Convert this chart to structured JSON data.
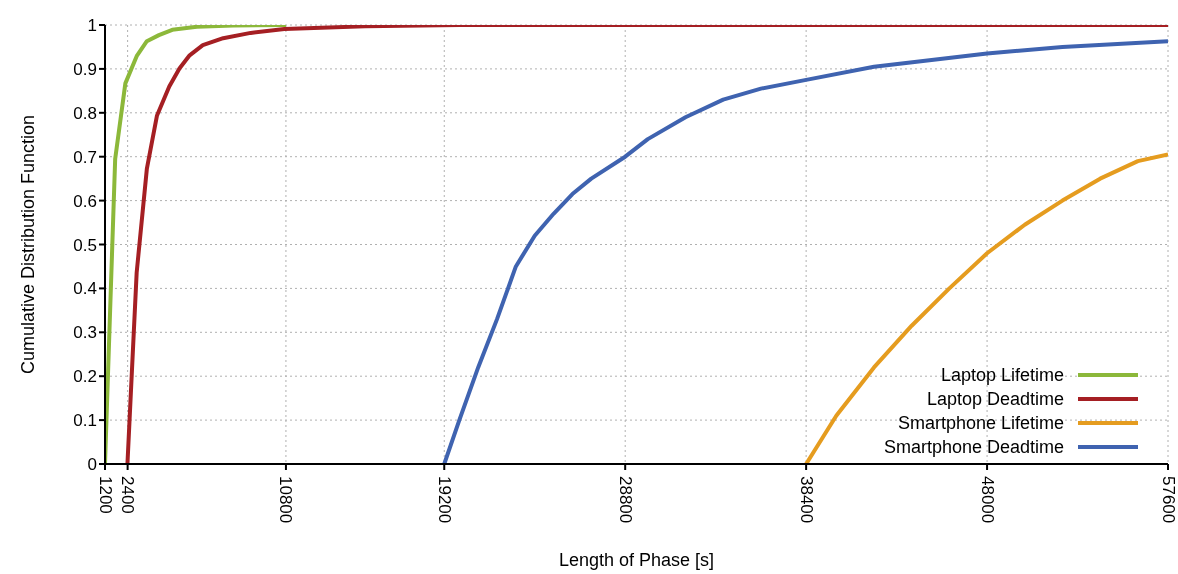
{
  "chart_data": {
    "type": "line",
    "xlabel": "Length of Phase [s]",
    "ylabel": "Cumulative Distribution Function",
    "xlim": [
      1200,
      57600
    ],
    "xticks": [
      1200,
      2400,
      10800,
      19200,
      28800,
      38400,
      48000,
      57600
    ],
    "ylim": [
      0,
      1
    ],
    "yticks": [
      0,
      0.1,
      0.2,
      0.3,
      0.4,
      0.5,
      0.6,
      0.7,
      0.8,
      0.9,
      1
    ],
    "grid": true,
    "legend": "bottom right",
    "marker": "none",
    "line_style": "solid",
    "series": [
      {
        "name": "Laptop Lifetime",
        "color": "#8cb83a",
        "x": [
          1200,
          1740,
          2280,
          2880,
          3420,
          4060,
          4770,
          6070,
          8000,
          10800
        ],
        "values": [
          0,
          0.695,
          0.867,
          0.929,
          0.963,
          0.977,
          0.989,
          0.996,
          0.999,
          1
        ]
      },
      {
        "name": "Laptop Deadtime",
        "color": "#a51f23",
        "x": [
          2390,
          2880,
          3420,
          3960,
          4610,
          5150,
          5690,
          6390,
          7470,
          8930,
          10720,
          15000,
          20000,
          57600
        ],
        "values": [
          0,
          0.436,
          0.672,
          0.794,
          0.86,
          0.901,
          0.931,
          0.954,
          0.97,
          0.982,
          0.991,
          0.997,
          1,
          1
        ]
      },
      {
        "name": "Smartphone Lifetime",
        "color": "#e59c1f",
        "x": [
          38400,
          40000,
          42000,
          44000,
          46000,
          48000,
          50000,
          52000,
          54000,
          56000,
          57600
        ],
        "values": [
          0,
          0.11,
          0.22,
          0.315,
          0.4,
          0.48,
          0.545,
          0.6,
          0.65,
          0.69,
          0.705
        ]
      },
      {
        "name": "Smartphone Deadtime",
        "color": "#3f63b0",
        "x": [
          19200,
          20000,
          21000,
          22000,
          23000,
          24000,
          25000,
          26000,
          27000,
          28800,
          30000,
          32000,
          34000,
          36000,
          38400,
          42000,
          48000,
          52000,
          57600
        ],
        "values": [
          0,
          0.1,
          0.22,
          0.33,
          0.45,
          0.52,
          0.57,
          0.615,
          0.65,
          0.7,
          0.74,
          0.79,
          0.83,
          0.855,
          0.875,
          0.905,
          0.935,
          0.95,
          0.963
        ]
      }
    ]
  }
}
